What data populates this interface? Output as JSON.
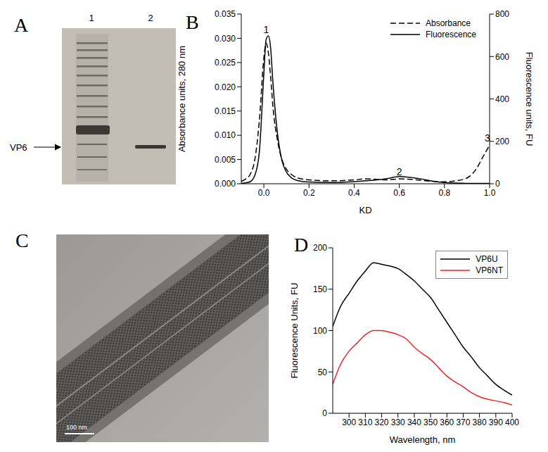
{
  "chart_data": [
    {
      "type": "gel",
      "title": "A",
      "lanes": [
        "1",
        "2"
      ],
      "annotation": "VP6"
    },
    {
      "type": "line",
      "title": "B",
      "x_label": "KD",
      "y_label": "Absorbance units, 280 nm",
      "y2_label": "Fluorescence units, FU",
      "x": [
        -0.1,
        -0.08,
        -0.06,
        -0.04,
        -0.02,
        0,
        0.01,
        0.02,
        0.03,
        0.04,
        0.06,
        0.08,
        0.1,
        0.12,
        0.15,
        0.2,
        0.3,
        0.4,
        0.45,
        0.5,
        0.55,
        0.6,
        0.65,
        0.7,
        0.75,
        0.8,
        0.85,
        0.9,
        0.94,
        0.97,
        1.0
      ],
      "xlim": [
        -0.1,
        1.0
      ],
      "xticks": [
        {
          "value": 0,
          "label": "0.0"
        },
        0.2,
        0.4,
        0.6,
        0.8,
        {
          "value": 1,
          "label": "1.0"
        }
      ],
      "ylim": [
        0,
        0.035
      ],
      "yticks": [
        {
          "value": 0,
          "label": "0.000"
        },
        0.005,
        {
          "value": 0.01,
          "label": "0.010"
        },
        0.015,
        {
          "value": 0.02,
          "label": "0.020"
        },
        0.025,
        {
          "value": 0.03,
          "label": "0.030"
        },
        0.035
      ],
      "y2lim": [
        0,
        800
      ],
      "y2ticks": [
        0,
        200,
        400,
        600,
        800
      ],
      "series": [
        {
          "name": "Absorbance",
          "color": "#000000",
          "line_style": "dashed",
          "values": [
            0.0005,
            0.001,
            0.002,
            0.005,
            0.013,
            0.026,
            0.029,
            0.027,
            0.022,
            0.016,
            0.009,
            0.005,
            0.003,
            0.002,
            0.0012,
            0.0008,
            0.0006,
            0.0008,
            0.001,
            0.0009,
            0.0008,
            0.001,
            0.0009,
            0.0007,
            0.0005,
            0.0004,
            0.0006,
            0.0012,
            0.003,
            0.0055,
            0.008
          ]
        },
        {
          "name": "Fluorescence",
          "color": "#000000",
          "line_style": "solid",
          "axis": "y2",
          "values": [
            2,
            4,
            10,
            40,
            150,
            520,
            680,
            697,
            640,
            480,
            240,
            110,
            55,
            30,
            15,
            8,
            6,
            10,
            14,
            18,
            25,
            34,
            30,
            22,
            12,
            6,
            3,
            2,
            2,
            2,
            2
          ]
        }
      ],
      "annotations": [
        {
          "text": "1",
          "x": 0.01,
          "y": 0.0318
        },
        {
          "text": "2",
          "x": 0.6,
          "y": 0.0024
        },
        {
          "text": "3",
          "x": 0.99,
          "y": 0.0095
        }
      ],
      "legend": "upper right",
      "grid": false
    },
    {
      "type": "micrograph",
      "title": "C",
      "scale_bar": "100 nm"
    },
    {
      "type": "line",
      "title": "D",
      "x_label": "Wavelength, nm",
      "y_label": "Fluorescence Units, FU",
      "x": [
        290,
        295,
        300,
        305,
        310,
        315,
        320,
        325,
        330,
        335,
        340,
        345,
        350,
        355,
        360,
        365,
        370,
        375,
        380,
        385,
        390,
        395,
        400
      ],
      "xlim": [
        290,
        400
      ],
      "xticks": [
        300,
        310,
        320,
        330,
        340,
        350,
        360,
        370,
        380,
        390,
        400
      ],
      "ylim": [
        0,
        200
      ],
      "yticks": [
        0,
        50,
        100,
        150,
        200
      ],
      "series": [
        {
          "name": "VP6U",
          "color": "#000000",
          "line_style": "solid",
          "values": [
            105,
            130,
            145,
            160,
            172,
            182,
            180,
            178,
            175,
            168,
            160,
            150,
            140,
            125,
            110,
            95,
            80,
            68,
            55,
            45,
            35,
            28,
            22
          ]
        },
        {
          "name": "VP6NT",
          "color": "#e8262b",
          "line_style": "solid",
          "values": [
            35,
            60,
            75,
            85,
            95,
            100,
            100,
            98,
            95,
            90,
            80,
            72,
            65,
            55,
            45,
            38,
            32,
            25,
            20,
            17,
            15,
            13,
            10
          ]
        }
      ],
      "legend": "upper right",
      "grid": false
    }
  ]
}
